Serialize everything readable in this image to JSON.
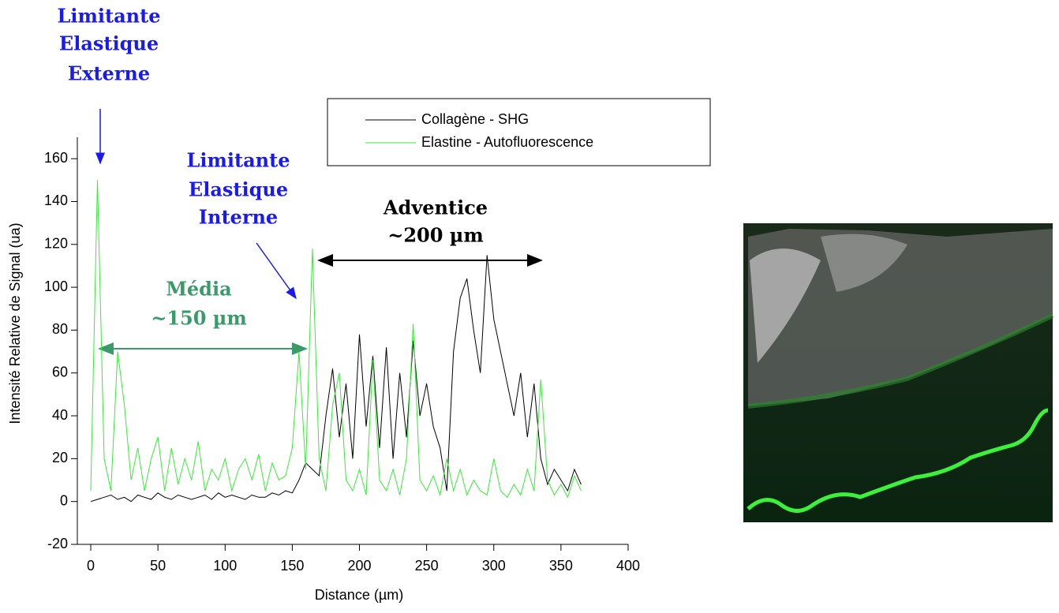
{
  "chart_data": {
    "type": "line",
    "x_label": "Distance (µm)",
    "y_label": "Intensité Relative de Signal (ua)",
    "x": [
      0,
      5,
      10,
      15,
      20,
      25,
      30,
      35,
      40,
      45,
      50,
      55,
      60,
      65,
      70,
      75,
      80,
      85,
      90,
      95,
      100,
      105,
      110,
      115,
      120,
      125,
      130,
      135,
      140,
      145,
      150,
      155,
      160,
      165,
      170,
      175,
      180,
      185,
      190,
      195,
      200,
      205,
      210,
      215,
      220,
      225,
      230,
      235,
      240,
      245,
      250,
      255,
      260,
      265,
      270,
      275,
      280,
      285,
      290,
      295,
      300,
      305,
      310,
      315,
      320,
      325,
      330,
      335,
      340,
      345,
      350,
      355,
      360,
      365
    ],
    "series": [
      {
        "name": "Collagène - SHG",
        "color": "#000000",
        "values": [
          0,
          1,
          2,
          3,
          1,
          2,
          0,
          3,
          2,
          1,
          4,
          2,
          1,
          3,
          2,
          1,
          2,
          3,
          1,
          4,
          2,
          3,
          2,
          1,
          3,
          2,
          2,
          4,
          3,
          5,
          4,
          10,
          18,
          15,
          12,
          40,
          62,
          30,
          55,
          20,
          78,
          35,
          68,
          25,
          72,
          20,
          60,
          30,
          75,
          40,
          55,
          35,
          25,
          5,
          70,
          95,
          104,
          80,
          60,
          115,
          85,
          70,
          55,
          40,
          60,
          30,
          55,
          20,
          8,
          15,
          10,
          5,
          15,
          8
        ]
      },
      {
        "name": "Elastine - Autofluorescence",
        "color": "#33ee33",
        "values": [
          5,
          150,
          20,
          5,
          70,
          45,
          10,
          25,
          5,
          20,
          30,
          5,
          25,
          8,
          20,
          10,
          28,
          5,
          15,
          10,
          20,
          5,
          15,
          20,
          10,
          22,
          5,
          18,
          10,
          12,
          25,
          70,
          15,
          118,
          20,
          5,
          45,
          60,
          10,
          5,
          15,
          3,
          66,
          10,
          5,
          15,
          3,
          20,
          83,
          10,
          5,
          12,
          3,
          20,
          5,
          15,
          3,
          10,
          5,
          3,
          20,
          5,
          2,
          8,
          3,
          15,
          5,
          57,
          10,
          3,
          8,
          2,
          12,
          5
        ]
      }
    ],
    "xlim": [
      -10,
      400
    ],
    "ylim": [
      -20,
      170
    ],
    "xticks": [
      0,
      50,
      100,
      150,
      200,
      250,
      300,
      350,
      400
    ],
    "yticks": [
      -20,
      0,
      20,
      40,
      60,
      80,
      100,
      120,
      140,
      160
    ],
    "grid": false,
    "annotations": {
      "externe": [
        "Limitante",
        "Elastique",
        "Externe"
      ],
      "interne": [
        "Limitante",
        "Elastique",
        "Interne"
      ],
      "adventice": [
        "Adventice",
        "~200 µm"
      ],
      "media": [
        "Média",
        "~150 µm"
      ]
    }
  }
}
